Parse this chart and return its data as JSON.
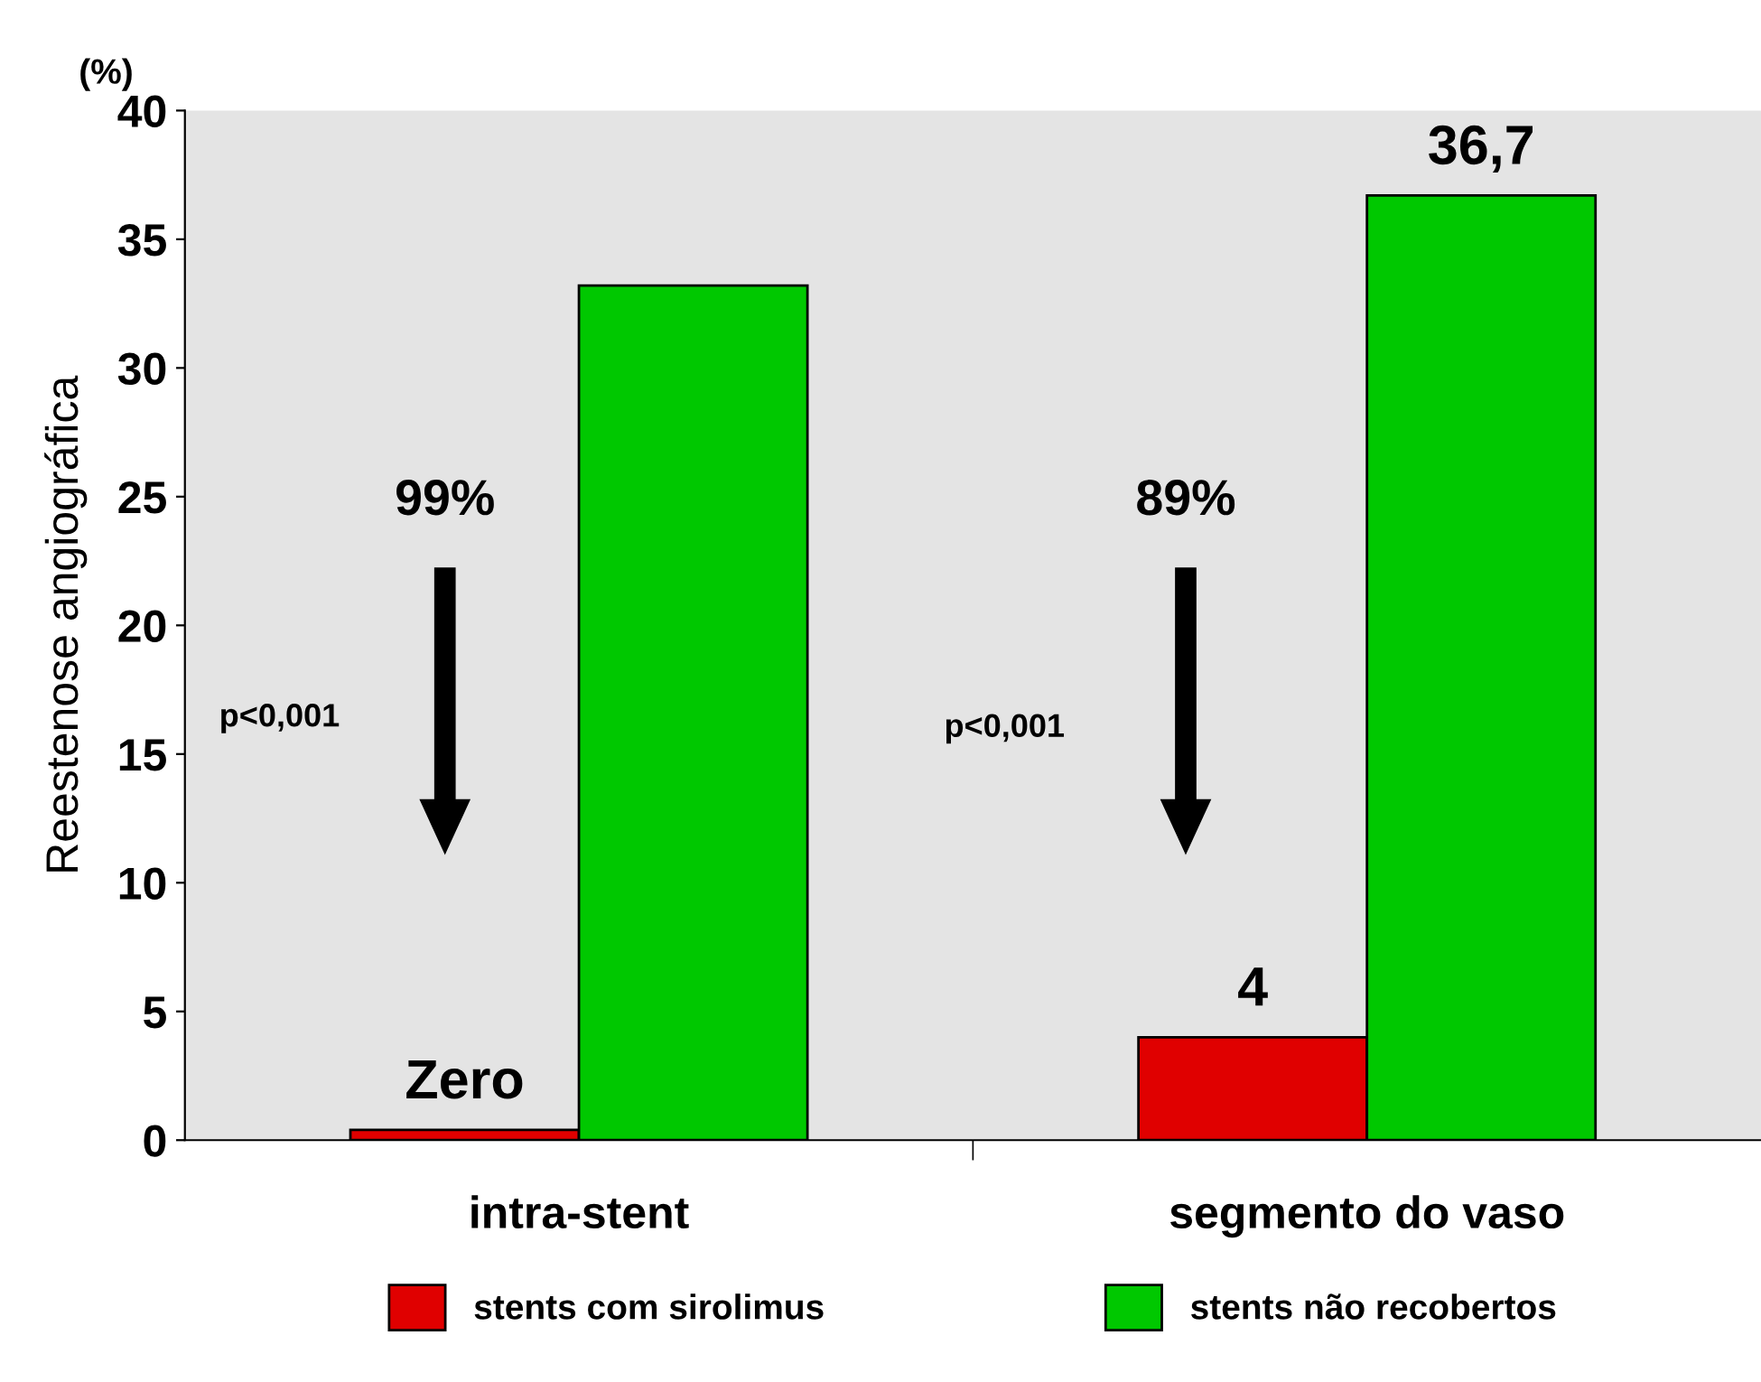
{
  "chart_data": {
    "type": "bar",
    "ylabel": "Reestenose angiográfica",
    "categories": [
      "intra-stent",
      "segmento do vaso"
    ],
    "series": [
      {
        "name": "stents com sirolimus",
        "color": "#e00000",
        "values": [
          0.4,
          4
        ],
        "value_labels": [
          "Zero",
          "4"
        ]
      },
      {
        "name": "stents não recobertos",
        "color": "#00c800",
        "values": [
          33.2,
          36.7
        ],
        "value_labels": [
          null,
          "36,7"
        ]
      }
    ],
    "ylim": [
      0,
      40
    ],
    "yticks": [
      0,
      5,
      10,
      15,
      20,
      25,
      30,
      35,
      40
    ],
    "grid": false,
    "legend": "bottom",
    "annotations": [
      "(%)",
      "99%",
      "p<0,001",
      "89%",
      "p<0,001"
    ]
  }
}
